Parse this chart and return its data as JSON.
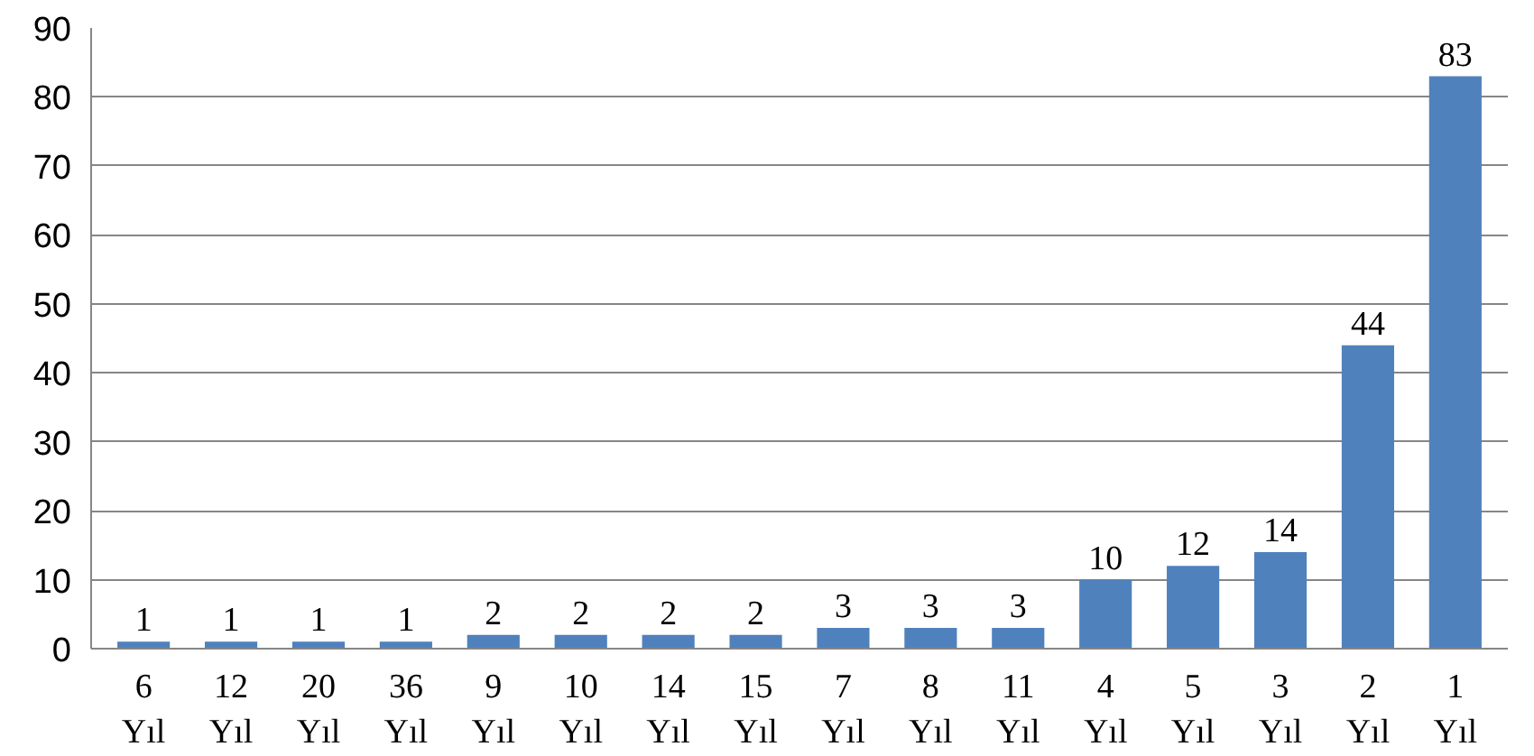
{
  "chart_data": {
    "type": "bar",
    "categories": [
      "6\nYıl",
      "12\nYıl",
      "20\nYıl",
      "36\nYıl",
      "9\nYıl",
      "10\nYıl",
      "14\nYıl",
      "15\nYıl",
      "7\nYıl",
      "8\nYıl",
      "11\nYıl",
      "4\nYıl",
      "5\nYıl",
      "3\nYıl",
      "2\nYıl",
      "1\nYıl"
    ],
    "values": [
      1,
      1,
      1,
      1,
      2,
      2,
      2,
      2,
      3,
      3,
      3,
      10,
      12,
      14,
      44,
      83
    ],
    "color": "#4f81bd",
    "ylim": [
      0,
      90
    ],
    "yticks": [
      0,
      10,
      20,
      30,
      40,
      50,
      60,
      70,
      80,
      90
    ],
    "grid": "y",
    "data_labels": true
  }
}
